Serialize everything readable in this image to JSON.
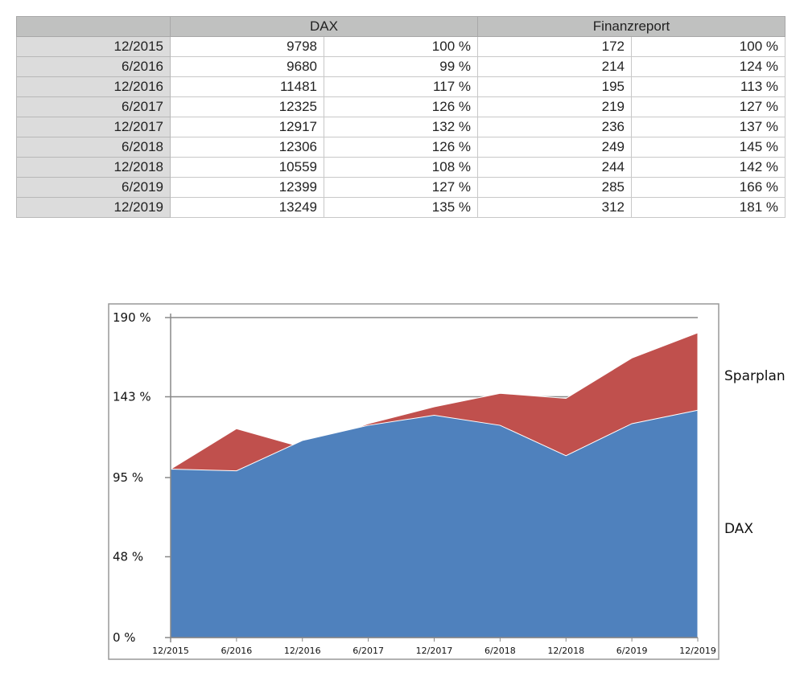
{
  "table": {
    "headers": [
      "",
      "DAX",
      "Finanzreport"
    ],
    "rows": [
      {
        "date": "12/2015",
        "dax": "9798",
        "dax_pct": "100 %",
        "fr": "172",
        "fr_pct": "100 %"
      },
      {
        "date": "6/2016",
        "dax": "9680",
        "dax_pct": "99 %",
        "fr": "214",
        "fr_pct": "124 %"
      },
      {
        "date": "12/2016",
        "dax": "11481",
        "dax_pct": "117 %",
        "fr": "195",
        "fr_pct": "113 %"
      },
      {
        "date": "6/2017",
        "dax": "12325",
        "dax_pct": "126 %",
        "fr": "219",
        "fr_pct": "127 %"
      },
      {
        "date": "12/2017",
        "dax": "12917",
        "dax_pct": "132 %",
        "fr": "236",
        "fr_pct": "137 %"
      },
      {
        "date": "6/2018",
        "dax": "12306",
        "dax_pct": "126 %",
        "fr": "249",
        "fr_pct": "145 %"
      },
      {
        "date": "12/2018",
        "dax": "10559",
        "dax_pct": "108 %",
        "fr": "244",
        "fr_pct": "142 %"
      },
      {
        "date": "6/2019",
        "dax": "12399",
        "dax_pct": "127 %",
        "fr": "285",
        "fr_pct": "166 %"
      },
      {
        "date": "12/2019",
        "dax": "13249",
        "dax_pct": "135 %",
        "fr": "312",
        "fr_pct": "181 %"
      }
    ]
  },
  "chart_data": {
    "type": "area",
    "categories": [
      "12/2015",
      "6/2016",
      "12/2016",
      "6/2017",
      "12/2017",
      "6/2018",
      "12/2018",
      "6/2019",
      "12/2019"
    ],
    "series": [
      {
        "name": "Sparplan",
        "values": [
          100,
          124,
          113,
          127,
          137,
          145,
          142,
          166,
          181
        ],
        "color": "#c0504d"
      },
      {
        "name": "DAX",
        "values": [
          100,
          99,
          117,
          126,
          132,
          126,
          108,
          127,
          135
        ],
        "color": "#4f81bd"
      }
    ],
    "yticks": [
      0,
      48,
      95,
      143,
      190
    ],
    "ytick_labels": [
      "0 %",
      "48 %",
      "95 %",
      "143 %",
      "190 %"
    ],
    "ylim": [
      0,
      190
    ],
    "grid": true,
    "legend": "right"
  }
}
